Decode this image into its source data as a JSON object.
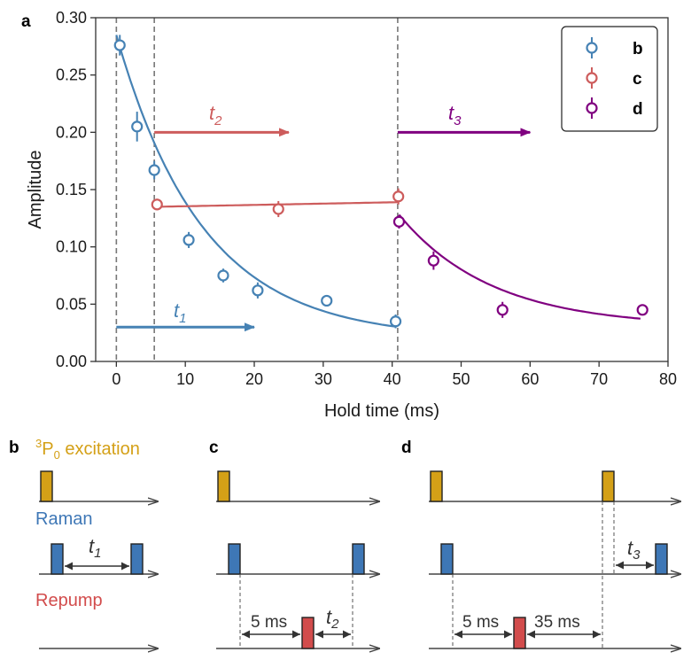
{
  "colors": {
    "blue": "#4682b4",
    "red": "#cd5c5c",
    "purple": "#800080",
    "gold": "#d4a017",
    "pulse_blue": "#3e77b6",
    "pulse_red": "#d24c4c",
    "axis": "#333333",
    "guide": "#777777"
  },
  "panel_labels": {
    "a": "a",
    "b": "b",
    "c": "c",
    "d": "d"
  },
  "chart_data": {
    "type": "scatter",
    "xlabel": "Hold time (ms)",
    "ylabel": "Amplitude",
    "xlim": [
      -3,
      80
    ],
    "ylim": [
      0,
      0.3
    ],
    "xticks": [
      0,
      10,
      20,
      30,
      40,
      50,
      60,
      70,
      80
    ],
    "yticks": [
      0.0,
      0.05,
      0.1,
      0.15,
      0.2,
      0.25,
      0.3
    ],
    "ytick_labels": [
      "0.00",
      "0.05",
      "0.10",
      "0.15",
      "0.20",
      "0.25",
      "0.30"
    ],
    "grid": false,
    "legend": {
      "position": "top-right",
      "entries": [
        "b",
        "c",
        "d"
      ]
    },
    "series": [
      {
        "name": "b",
        "color": "#4682b4",
        "x": [
          0.5,
          3,
          5.5,
          10.5,
          15.5,
          20.5,
          30.5,
          40.5
        ],
        "y": [
          0.276,
          0.205,
          0.167,
          0.106,
          0.075,
          0.062,
          0.053,
          0.035
        ],
        "err": [
          0.009,
          0.013,
          0.008,
          0.007,
          0.006,
          0.007,
          0.004,
          0.006
        ],
        "fit": {
          "model": "exp_decay",
          "A": 0.265,
          "tau": 12.5,
          "C": 0.02,
          "x_from": 0,
          "x_to": 40.5
        }
      },
      {
        "name": "c",
        "color": "#cd5c5c",
        "x": [
          5.9,
          23.5,
          40.9
        ],
        "y": [
          0.137,
          0.133,
          0.144
        ],
        "err": [
          0.005,
          0.007,
          0.007
        ],
        "fit": {
          "model": "linear",
          "y0": 0.135,
          "y1": 0.139,
          "x_from": 5.9,
          "x_to": 40.9
        }
      },
      {
        "name": "d",
        "color": "#800080",
        "x": [
          41,
          46,
          56,
          76.3
        ],
        "y": [
          0.122,
          0.088,
          0.045,
          0.045
        ],
        "err": [
          0.006,
          0.008,
          0.007,
          0.004
        ],
        "fit": {
          "model": "exp_decay",
          "A": 0.098,
          "tau": 13.5,
          "C": 0.03,
          "x_from": 41,
          "x_to": 76
        }
      }
    ],
    "vlines": [
      0,
      5.5,
      40.8
    ],
    "arrows": [
      {
        "name": "t1",
        "color": "#4682b4",
        "x_from": 0,
        "x_to": 20,
        "y": 0.03
      },
      {
        "name": "t2",
        "color": "#cd5c5c",
        "x_from": 5.5,
        "x_to": 25,
        "y": 0.2
      },
      {
        "name": "t3",
        "color": "#800080",
        "x_from": 40.8,
        "x_to": 60,
        "y": 0.2
      }
    ],
    "annotations": {
      "t1": {
        "main": "t",
        "sub": "1"
      },
      "t2": {
        "main": "t",
        "sub": "2"
      },
      "t3": {
        "main": "t",
        "sub": "3"
      }
    }
  },
  "sequence": {
    "excitation_label": {
      "sup": "3",
      "main": "P",
      "sub": "0",
      "rest": " excitation"
    },
    "raman_label": "Raman",
    "repump_label": "Repump",
    "b_t1": {
      "main": "t",
      "sub": "1"
    },
    "c_5ms": "5 ms",
    "c_t2": {
      "main": "t",
      "sub": "2"
    },
    "d_5ms": "5 ms",
    "d_35ms": "35 ms",
    "d_t3": {
      "main": "t",
      "sub": "3"
    }
  }
}
